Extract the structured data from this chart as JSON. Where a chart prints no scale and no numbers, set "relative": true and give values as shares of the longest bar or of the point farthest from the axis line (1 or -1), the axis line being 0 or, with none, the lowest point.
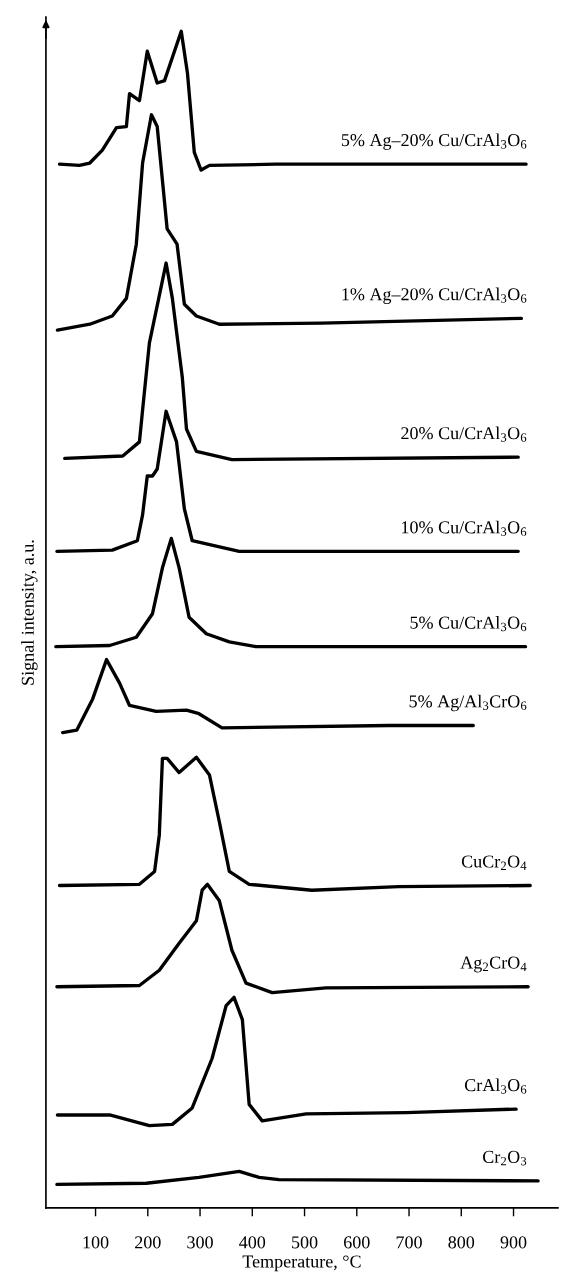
{
  "chart_data": {
    "type": "line",
    "relative": true,
    "xlabel": "Temperature, °C",
    "ylabel": "Signal intensity, a.u.",
    "xlim": [
      5,
      985
    ],
    "xticks": [
      100,
      200,
      300,
      400,
      500,
      600,
      700,
      800,
      900
    ],
    "grid": false,
    "legend": false,
    "marker": "none",
    "line_style": "solid",
    "series": [
      {
        "name": "5% Ag–20% Cu/CrAl$_{3}$O$_{6}$",
        "color": "#000000",
        "x": [
          31,
          69,
          89,
          113,
          140,
          159,
          165,
          184,
          199,
          218,
          232,
          264,
          276,
          289,
          302,
          318,
          445,
          924
        ],
        "values": [
          0.887,
          0.886,
          0.888,
          0.899,
          0.918,
          0.919,
          0.947,
          0.941,
          0.983,
          0.956,
          0.958,
          1.0,
          0.964,
          0.897,
          0.882,
          0.886,
          0.887,
          0.887
        ]
      },
      {
        "name": "1% Ag–20% Cu/CrAl$_{3}$O$_{6}$",
        "color": "#000000",
        "x": [
          27,
          89,
          132,
          159,
          178,
          190,
          207,
          218,
          237,
          256,
          270,
          293,
          337,
          533,
          915
        ],
        "values": [
          0.746,
          0.751,
          0.758,
          0.773,
          0.819,
          0.888,
          0.929,
          0.919,
          0.832,
          0.819,
          0.768,
          0.758,
          0.751,
          0.752,
          0.756
        ]
      },
      {
        "name": "20% Cu/CrAl$_{3}$O$_{6}$",
        "color": "#000000",
        "x": [
          41,
          152,
          184,
          190,
          203,
          235,
          247,
          266,
          274,
          293,
          361,
          909
        ],
        "values": [
          0.637,
          0.639,
          0.651,
          0.678,
          0.735,
          0.803,
          0.773,
          0.706,
          0.662,
          0.643,
          0.636,
          0.638
        ]
      },
      {
        "name": "10% Cu/CrAl$_{3}$O$_{6}$",
        "color": "#000000",
        "x": [
          26,
          132,
          180,
          190,
          199,
          209,
          218,
          235,
          255,
          270,
          285,
          375,
          909
        ],
        "values": [
          0.558,
          0.559,
          0.567,
          0.589,
          0.622,
          0.622,
          0.628,
          0.677,
          0.651,
          0.594,
          0.567,
          0.558,
          0.558
        ]
      },
      {
        "name": "5% Cu/CrAl$_{3}$O$_{6}$",
        "color": "#000000",
        "x": [
          24,
          127,
          178,
          209,
          228,
          245,
          260,
          279,
          312,
          356,
          407,
          923
        ],
        "values": [
          0.477,
          0.478,
          0.485,
          0.505,
          0.544,
          0.569,
          0.544,
          0.502,
          0.488,
          0.481,
          0.477,
          0.477
        ]
      },
      {
        "name": "5% Ag/Al$_{3}$CrO$_{6}$",
        "color": "#000000",
        "x": [
          37,
          64,
          94,
          121,
          146,
          165,
          216,
          274,
          298,
          342,
          661,
          823
        ],
        "values": [
          0.404,
          0.406,
          0.432,
          0.466,
          0.446,
          0.427,
          0.422,
          0.423,
          0.42,
          0.408,
          0.41,
          0.41
        ]
      },
      {
        "name": "CuCr$_{2}$O$_{4}$",
        "color": "#000000",
        "x": [
          31,
          184,
          213,
          222,
          228,
          237,
          260,
          293,
          318,
          337,
          356,
          394,
          514,
          680,
          932
        ],
        "values": [
          0.274,
          0.275,
          0.286,
          0.317,
          0.382,
          0.382,
          0.37,
          0.383,
          0.368,
          0.328,
          0.286,
          0.275,
          0.27,
          0.273,
          0.274
        ]
      },
      {
        "name": "Ag$_{2}$CrO$_{4}$",
        "color": "#000000",
        "x": [
          26,
          184,
          222,
          260,
          293,
          304,
          314,
          337,
          361,
          388,
          438,
          541,
          928
        ],
        "values": [
          0.188,
          0.189,
          0.202,
          0.225,
          0.244,
          0.27,
          0.275,
          0.261,
          0.219,
          0.191,
          0.183,
          0.187,
          0.188
        ]
      },
      {
        "name": "CrAl$_{3}$O$_{6}$",
        "color": "#000000",
        "x": [
          27,
          127,
          203,
          247,
          285,
          323,
          350,
          365,
          381,
          394,
          419,
          503,
          694,
          905
        ],
        "values": [
          0.079,
          0.079,
          0.07,
          0.071,
          0.085,
          0.127,
          0.172,
          0.179,
          0.16,
          0.088,
          0.074,
          0.08,
          0.081,
          0.084
        ]
      },
      {
        "name": "Cr$_{2}$O$_{3}$",
        "color": "#000000",
        "x": [
          26,
          197,
          298,
          375,
          413,
          451,
          947
        ],
        "values": [
          0.02,
          0.021,
          0.026,
          0.031,
          0.026,
          0.024,
          0.023
        ]
      }
    ]
  }
}
